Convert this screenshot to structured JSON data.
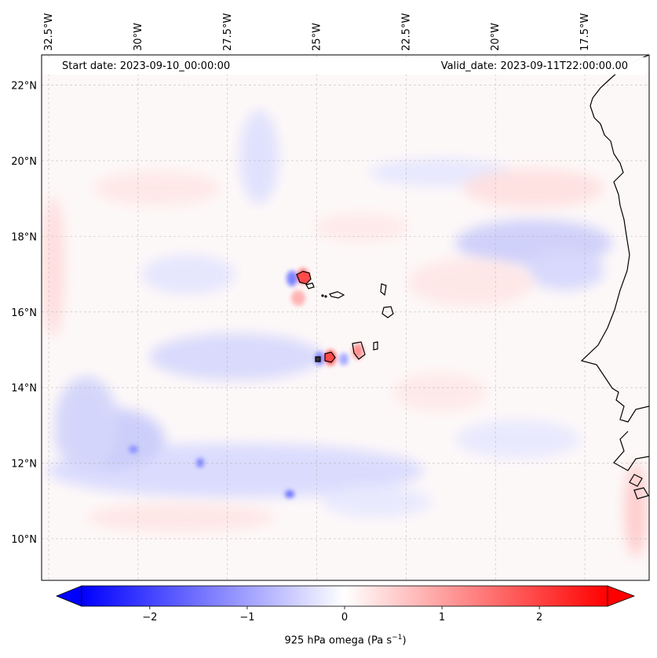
{
  "map": {
    "annotations": {
      "start_date": "Start date: 2023-09-10_00:00:00",
      "valid_date": "Valid_date: 2023-09-11T22:00:00.00"
    },
    "extent": {
      "lon_min": -32.7,
      "lon_max": -15.7,
      "lat_min": 8.9,
      "lat_max": 22.8
    },
    "longitude_ticks": [
      {
        "value": -32.5,
        "label": "32.5°W"
      },
      {
        "value": -30,
        "label": "30°W"
      },
      {
        "value": -27.5,
        "label": "27.5°W"
      },
      {
        "value": -25,
        "label": "25°W"
      },
      {
        "value": -22.5,
        "label": "22.5°W"
      },
      {
        "value": -20,
        "label": "20°W"
      },
      {
        "value": -17.5,
        "label": "17.5°W"
      }
    ],
    "latitude_ticks": [
      {
        "value": 22,
        "label": "22°N"
      },
      {
        "value": 20,
        "label": "20°N"
      },
      {
        "value": 18,
        "label": "18°N"
      },
      {
        "value": 16,
        "label": "16°N"
      },
      {
        "value": 14,
        "label": "14°N"
      },
      {
        "value": 12,
        "label": "12°N"
      },
      {
        "value": 10,
        "label": "10°N"
      }
    ],
    "gridlines": true,
    "field_colormap": "bwr"
  },
  "colorbar": {
    "label_main": "925 hPa omega (Pa s",
    "label_exp": "−1",
    "label_close": ")",
    "min": -2.7,
    "max": 2.7,
    "ticks": [
      {
        "value": -2,
        "label": "−2"
      },
      {
        "value": -1,
        "label": "−1"
      },
      {
        "value": 0,
        "label": "0"
      },
      {
        "value": 1,
        "label": "1"
      },
      {
        "value": 2,
        "label": "2"
      }
    ],
    "low_color": "#0000ff",
    "mid_color": "#ffffff",
    "high_color": "#ff0000",
    "extend": "both"
  }
}
